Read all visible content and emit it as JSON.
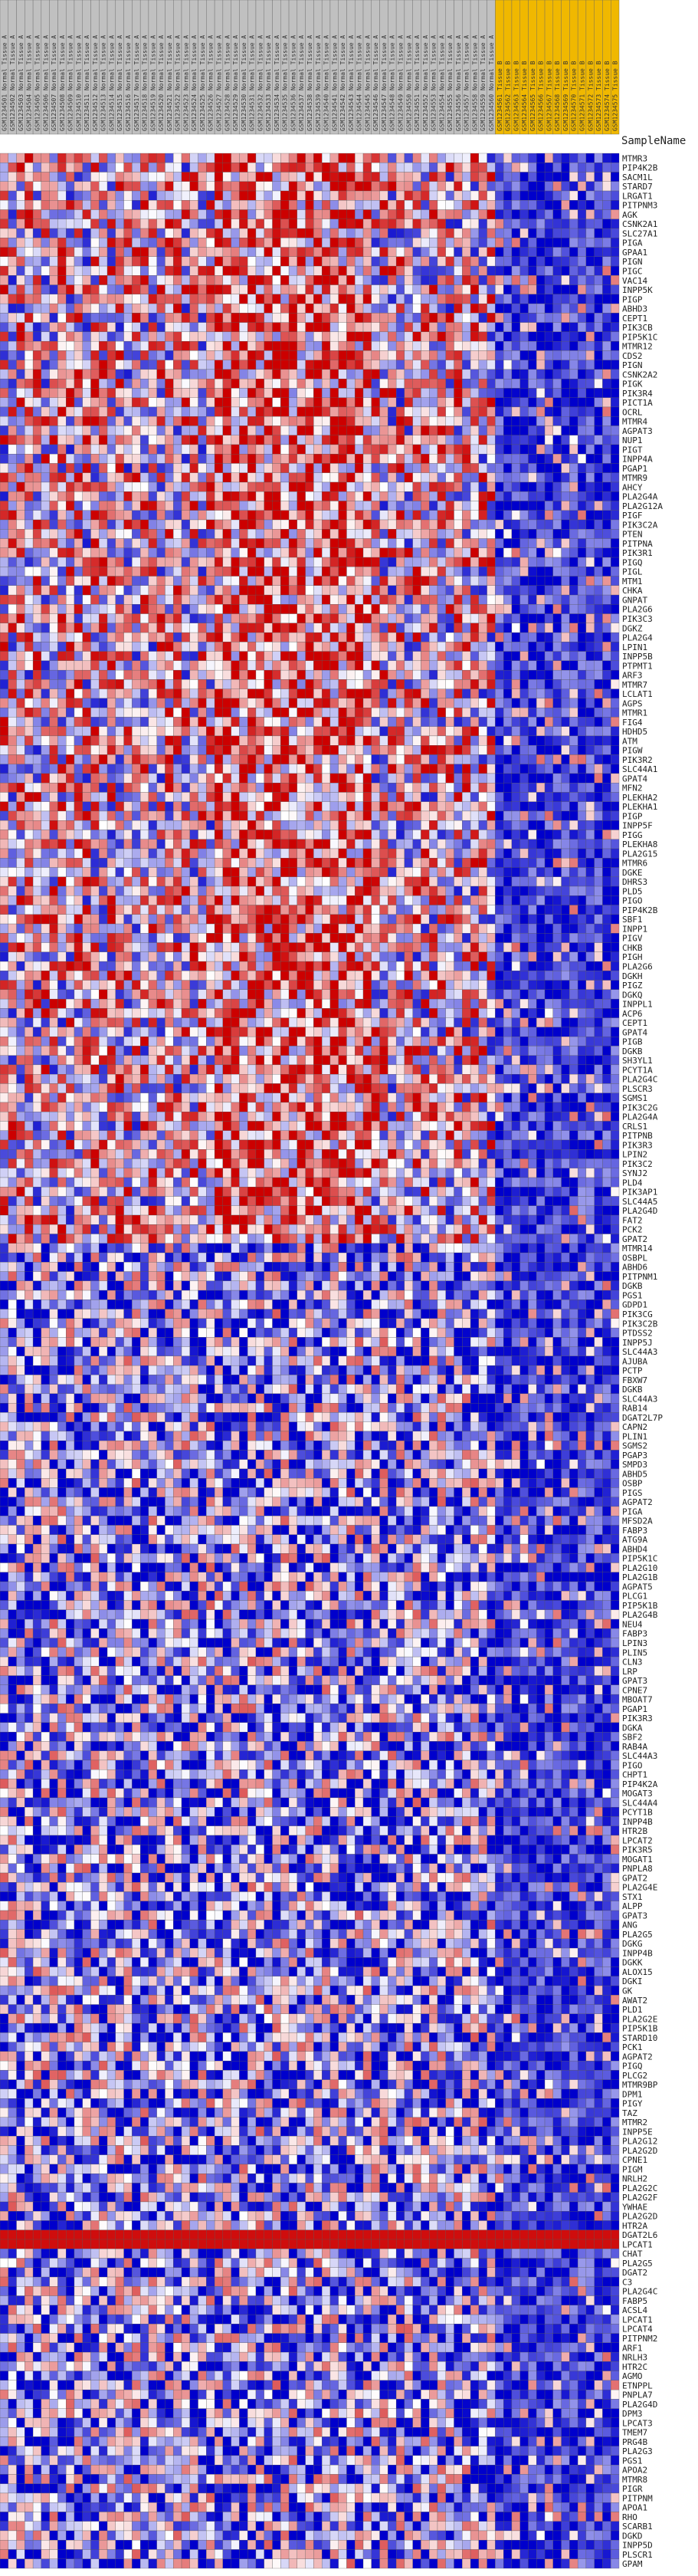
{
  "chart_data": {
    "type": "heatmap",
    "column_header_title": "SampleName",
    "color_scale": {
      "low": "#0000cc",
      "mid": "#ffffff",
      "high": "#cc0000"
    },
    "group_colors": {
      "group_a": "#c0c0c0",
      "group_b": "#f0b800"
    },
    "columns": [
      {
        "label": "GSM1234501 Normal Tissue A",
        "group": "group_a"
      },
      {
        "label": "GSM1234502 Normal Tissue A",
        "group": "group_a"
      },
      {
        "label": "GSM1234503 Normal Tissue A",
        "group": "group_a"
      },
      {
        "label": "GSM1234504 Normal Tissue A",
        "group": "group_a"
      },
      {
        "label": "GSM1234505 Normal Tissue A",
        "group": "group_a"
      },
      {
        "label": "GSM1234506 Normal Tissue A",
        "group": "group_a"
      },
      {
        "label": "GSM1234507 Normal Tissue A",
        "group": "group_a"
      },
      {
        "label": "GSM1234508 Normal Tissue A",
        "group": "group_a"
      },
      {
        "label": "GSM1234509 Normal Tissue A",
        "group": "group_a"
      },
      {
        "label": "GSM1234510 Normal Tissue A",
        "group": "group_a"
      },
      {
        "label": "GSM1234511 Normal Tissue A",
        "group": "group_a"
      },
      {
        "label": "GSM1234512 Normal Tissue A",
        "group": "group_a"
      },
      {
        "label": "GSM1234513 Normal Tissue A",
        "group": "group_a"
      },
      {
        "label": "GSM1234514 Normal Tissue A",
        "group": "group_a"
      },
      {
        "label": "GSM1234515 Normal Tissue A",
        "group": "group_a"
      },
      {
        "label": "GSM1234516 Normal Tissue A",
        "group": "group_a"
      },
      {
        "label": "GSM1234517 Normal Tissue A",
        "group": "group_a"
      },
      {
        "label": "GSM1234518 Normal Tissue A",
        "group": "group_a"
      },
      {
        "label": "GSM1234519 Normal Tissue A",
        "group": "group_a"
      },
      {
        "label": "GSM1234520 Normal Tissue A",
        "group": "group_a"
      },
      {
        "label": "GSM1234521 Normal Tissue A",
        "group": "group_a"
      },
      {
        "label": "GSM1234522 Normal Tissue A",
        "group": "group_a"
      },
      {
        "label": "GSM1234523 Normal Tissue A",
        "group": "group_a"
      },
      {
        "label": "GSM1234524 Normal Tissue A",
        "group": "group_a"
      },
      {
        "label": "GSM1234525 Normal Tissue A",
        "group": "group_a"
      },
      {
        "label": "GSM1234526 Normal Tissue A",
        "group": "group_a"
      },
      {
        "label": "GSM1234527 Normal Tissue A",
        "group": "group_a"
      },
      {
        "label": "GSM1234528 Normal Tissue A",
        "group": "group_a"
      },
      {
        "label": "GSM1234529 Normal Tissue A",
        "group": "group_a"
      },
      {
        "label": "GSM1234530 Normal Tissue A",
        "group": "group_a"
      },
      {
        "label": "GSM1234531 Normal Tissue A",
        "group": "group_a"
      },
      {
        "label": "GSM1234532 Normal Tissue A",
        "group": "group_a"
      },
      {
        "label": "GSM1234533 Normal Tissue A",
        "group": "group_a"
      },
      {
        "label": "GSM1234534 Normal Tissue A",
        "group": "group_a"
      },
      {
        "label": "GSM1234535 Normal Tissue A",
        "group": "group_a"
      },
      {
        "label": "GSM1234536 Normal Tissue A",
        "group": "group_a"
      },
      {
        "label": "GSM1234537 Normal Tissue A",
        "group": "group_a"
      },
      {
        "label": "GSM1234538 Normal Tissue A",
        "group": "group_a"
      },
      {
        "label": "GSM1234539 Normal Tissue A",
        "group": "group_a"
      },
      {
        "label": "GSM1234540 Normal Tissue A",
        "group": "group_a"
      },
      {
        "label": "GSM1234541 Normal Tissue A",
        "group": "group_a"
      },
      {
        "label": "GSM1234542 Normal Tissue A",
        "group": "group_a"
      },
      {
        "label": "GSM1234543 Normal Tissue A",
        "group": "group_a"
      },
      {
        "label": "GSM1234544 Normal Tissue A",
        "group": "group_a"
      },
      {
        "label": "GSM1234545 Normal Tissue A",
        "group": "group_a"
      },
      {
        "label": "GSM1234546 Normal Tissue A",
        "group": "group_a"
      },
      {
        "label": "GSM1234547 Normal Tissue A",
        "group": "group_a"
      },
      {
        "label": "GSM1234548 Normal Tissue A",
        "group": "group_a"
      },
      {
        "label": "GSM1234549 Normal Tissue A",
        "group": "group_a"
      },
      {
        "label": "GSM1234550 Normal Tissue A",
        "group": "group_a"
      },
      {
        "label": "GSM1234551 Normal Tissue A",
        "group": "group_a"
      },
      {
        "label": "GSM1234552 Normal Tissue A",
        "group": "group_a"
      },
      {
        "label": "GSM1234553 Normal Tissue A",
        "group": "group_a"
      },
      {
        "label": "GSM1234554 Normal Tissue A",
        "group": "group_a"
      },
      {
        "label": "GSM1234555 Normal Tissue A",
        "group": "group_a"
      },
      {
        "label": "GSM1234556 Normal Tissue A",
        "group": "group_a"
      },
      {
        "label": "GSM1234557 Normal Tissue A",
        "group": "group_a"
      },
      {
        "label": "GSM1234558 Normal Tissue A",
        "group": "group_a"
      },
      {
        "label": "GSM1234559 Normal Tissue A",
        "group": "group_a"
      },
      {
        "label": "GSM1234560 Normal Tissue A",
        "group": "group_a"
      },
      {
        "label": "GSM1234561 Tissue B",
        "group": "group_b"
      },
      {
        "label": "GSM1234562 Tissue B",
        "group": "group_b"
      },
      {
        "label": "GSM1234563 Tissue B",
        "group": "group_b"
      },
      {
        "label": "GSM1234564 Tissue B",
        "group": "group_b"
      },
      {
        "label": "GSM1234565 Tissue B",
        "group": "group_b"
      },
      {
        "label": "GSM1234566 Tissue B",
        "group": "group_b"
      },
      {
        "label": "GSM1234567 Tissue B",
        "group": "group_b"
      },
      {
        "label": "GSM1234568 Tissue B",
        "group": "group_b"
      },
      {
        "label": "GSM1234569 Tissue B",
        "group": "group_b"
      },
      {
        "label": "GSM1234570 Tissue B",
        "group": "group_b"
      },
      {
        "label": "GSM1234571 Tissue B",
        "group": "group_b"
      },
      {
        "label": "GSM1234572 Tissue B",
        "group": "group_b"
      },
      {
        "label": "GSM1234573 Tissue B",
        "group": "group_b"
      },
      {
        "label": "GSM1234574 Tissue B",
        "group": "group_b"
      },
      {
        "label": "GSM1234575 Tissue B",
        "group": "group_b"
      }
    ],
    "rows": [
      "MTMR3",
      "PIP4K2B",
      "SACM1L",
      "STARD7",
      "LRGAT1",
      "PITPNM3",
      "AGK",
      "CSNK2A1",
      "SLC27A1",
      "PIGA",
      "GPAA1",
      "PIGN",
      "PIGC",
      "VAC14",
      "INPP5K",
      "PIGP",
      "ABHD3",
      "CEPT1",
      "PIK3CB",
      "PIP5K1C",
      "MTMR12",
      "CDS2",
      "PIGN",
      "CSNK2A2",
      "PIGK",
      "PIK3R4",
      "PICT1A",
      "OCRL",
      "MTMR4",
      "AGPAT3",
      "NUP1",
      "PIGT",
      "INPP4A",
      "PGAP1",
      "MTMR9",
      "AHCY",
      "PLA2G4A",
      "PLA2G12A",
      "PIGF",
      "PIK3C2A",
      "PTEN",
      "PITPNA",
      "PIK3R1",
      "PIGQ",
      "PIGL",
      "MTM1",
      "CHKA",
      "GNPAT",
      "PLA2G6",
      "PIK3C3",
      "DGKZ",
      "PLA2G4",
      "LPIN1",
      "INPP5B",
      "PTPMT1",
      "ARF3",
      "MTMR7",
      "LCLAT1",
      "AGPS",
      "MTMR1",
      "FIG4",
      "HDHD5",
      "ATM",
      "PIGW",
      "PIK3R2",
      "SLC44A1",
      "GPAT4",
      "MFN2",
      "PLEKHA2",
      "PLEKHA1",
      "PIGP",
      "INPP5F",
      "PIGG",
      "PLEKHA8",
      "PLA2G15",
      "MTMR6",
      "DGKE",
      "DHRS3",
      "PLD5",
      "PIGO",
      "PIP4K2B",
      "SBF1",
      "INPP1",
      "PIGV",
      "CHKB",
      "PIGH",
      "PLA2G6",
      "DGKH",
      "PIGZ",
      "DGKQ",
      "INPPL1",
      "ACP6",
      "CEPT1",
      "GPAT4",
      "PIGB",
      "DGKB",
      "SH3YL1",
      "PCYT1A",
      "PLA2G4C",
      "PLSCR3",
      "SGMS1",
      "PIK3C2G",
      "PLA2G4A",
      "CRLS1",
      "PITPNB",
      "PIK3R3",
      "LPIN2",
      "PIK3C2",
      "SYNJ2",
      "PLD4",
      "PIK3AP1",
      "SLC44A5",
      "PLA2G4D",
      "FAT2",
      "PCK2",
      "GPAT2",
      "MTMR14",
      "OSBPL",
      "ABHD6",
      "PITPNM1",
      "DGKB",
      "PGS1",
      "GDPD1",
      "PIK3CG",
      "PIK3C2B",
      "PTDSS2",
      "INPP5J",
      "SLC44A3",
      "AJUBA",
      "PCTP",
      "FBXW7",
      "DGKB",
      "SLC44A3",
      "RAB14",
      "DGAT2L7P",
      "CAPN2",
      "PLIN1",
      "SGMS2",
      "PGAP3",
      "SMPD3",
      "ABHD5",
      "OSBP",
      "PIGS",
      "AGPAT2",
      "PIGA",
      "MFSD2A",
      "FABP3",
      "ATG9A",
      "ABHD4",
      "PIP5K1C",
      "PLA2G10",
      "PLA2G1B",
      "AGPAT5",
      "PLCG1",
      "PIP5K1B",
      "PLA2G4B",
      "NEU4",
      "FABP3",
      "LPIN3",
      "PLIN5",
      "CLN3",
      "LRP",
      "GPAT3",
      "CPNE7",
      "MBOAT7",
      "PGAP1",
      "PIK3R3",
      "DGKA",
      "SBF2",
      "RAB4A",
      "SLC44A3",
      "PIGO",
      "CHPT1",
      "PIP4K2A",
      "MOGAT3",
      "SLC44A4",
      "PCYT1B",
      "INPP4B",
      "HTR2B",
      "LPCAT2",
      "PIK3R5",
      "MOGAT1",
      "PNPLA8",
      "GPAT2",
      "PLA2G4E",
      "STX1",
      "ALPP",
      "GPAT3",
      "ANG",
      "PLA2G5",
      "DGKG",
      "INPP4B",
      "DGKK",
      "ALOX15",
      "DGKI",
      "GK",
      "AWAT2",
      "PLD1",
      "PLA2G2E",
      "PIP5K1B",
      "STARD10",
      "PCK1",
      "AGPAT2",
      "PIGQ",
      "PLCG2",
      "MTMR9BP",
      "DPM1",
      "PIGY",
      "TAZ",
      "MTMR2",
      "INPP5E",
      "PLA2G12",
      "PLA2G2D",
      "CPNE1",
      "PIGM",
      "NRLH2",
      "PLA2G2C",
      "PLA2G2F",
      "YWHAE",
      "PLA2G2D",
      "HTR2A",
      "DGAT2L6",
      "LPCAT1",
      "CHAT",
      "PLA2G5",
      "DGAT2",
      "C3",
      "PLA2G4C",
      "FABP5",
      "ACSL4",
      "LPCAT1",
      "LPCAT4",
      "PITPNM2",
      "ARF1",
      "NRLH3",
      "HTR2C",
      "AGMO",
      "ETNPPL",
      "PNPLA7",
      "PLA2G4D",
      "DPM3",
      "LPCAT3",
      "TMEM7",
      "PRG4B",
      "PLA2G3",
      "PGS1",
      "APOA2",
      "MTMR8",
      "PIGR",
      "PITPNM",
      "APOA1",
      "RHO",
      "SCARB1",
      "DGKD",
      "INPP5D",
      "PLSCR1",
      "GPAM"
    ],
    "values": []
  }
}
